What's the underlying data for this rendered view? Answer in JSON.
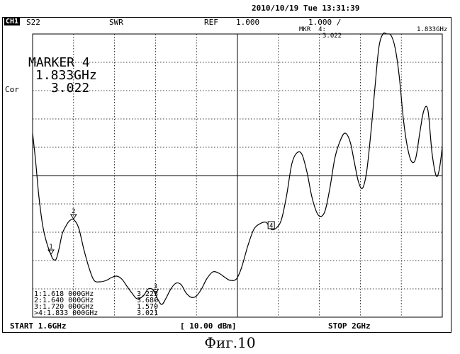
{
  "header": {
    "datetime": "2010/10/19 Tue 13:31:39",
    "channel": "CH1",
    "param": "S22",
    "format": "SWR",
    "ref_label": "REF",
    "ref_value": "1.000",
    "scale": "1.000 /",
    "marker_readout_label": "MKR  4:",
    "marker_readout_value": "3.022",
    "marker_readout_freq": "1.833GHz",
    "cor_label": "Cor"
  },
  "marker_block": {
    "title": "MARKER  4",
    "freq": "1.833GHz",
    "value": "3.022"
  },
  "marker_table": [
    {
      "label": "1:1.618 000GHz",
      "value": "3.223"
    },
    {
      "label": "2:1.640 000GHz",
      "value": "3.686"
    },
    {
      "label": "3:1.720 000GHz",
      "value": "1.570"
    },
    {
      "label": ">4:1.833 000GHz",
      "value": "3.021"
    }
  ],
  "footer": {
    "start": "START 1.6GHz",
    "power": "[ 10.00 dBm]",
    "stop": "STOP 2GHz"
  },
  "caption": "Фиг.10",
  "colors": {
    "trace": "#000000",
    "grid": "#000000",
    "background": "#ffffff"
  },
  "chart_data": {
    "type": "line",
    "xlim": [
      1.6,
      2.0
    ],
    "ylim": [
      0,
      10
    ],
    "ref_value": 1.0,
    "grid": true,
    "x": [
      1.6,
      1.603,
      1.606,
      1.61,
      1.614,
      1.618,
      1.62,
      1.623,
      1.626,
      1.629,
      1.633,
      1.636,
      1.64,
      1.645,
      1.65,
      1.655,
      1.66,
      1.666,
      1.672,
      1.677,
      1.682,
      1.687,
      1.692,
      1.697,
      1.702,
      1.708,
      1.713,
      1.718,
      1.722,
      1.726,
      1.73,
      1.735,
      1.74,
      1.745,
      1.75,
      1.755,
      1.76,
      1.765,
      1.77,
      1.776,
      1.782,
      1.788,
      1.793,
      1.799,
      1.804,
      1.81,
      1.816,
      1.822,
      1.828,
      1.833,
      1.838,
      1.843,
      1.848,
      1.853,
      1.858,
      1.863,
      1.868,
      1.873,
      1.879,
      1.885,
      1.89,
      1.895,
      1.9,
      1.905,
      1.91,
      1.914,
      1.918,
      1.922,
      1.926,
      1.93,
      1.934,
      1.938,
      1.942,
      1.946,
      1.95,
      1.954,
      1.958,
      1.962,
      1.966,
      1.97,
      1.974,
      1.978,
      1.982,
      1.986,
      1.99,
      1.994,
      1.997,
      2.0
    ],
    "y": [
      6.5,
      5.5,
      4.3,
      3.2,
      2.6,
      2.2,
      2.05,
      2.05,
      2.45,
      2.95,
      3.25,
      3.4,
      3.45,
      3.15,
      2.4,
      1.75,
      1.3,
      1.25,
      1.3,
      1.4,
      1.45,
      1.35,
      1.1,
      0.85,
      0.65,
      0.75,
      1.0,
      0.95,
      0.65,
      0.45,
      0.65,
      1.0,
      1.2,
      1.15,
      0.85,
      0.7,
      0.75,
      1.0,
      1.35,
      1.6,
      1.55,
      1.4,
      1.3,
      1.35,
      1.75,
      2.5,
      3.1,
      3.3,
      3.35,
      3.1,
      3.15,
      3.45,
      4.3,
      5.4,
      5.8,
      5.75,
      5.1,
      4.2,
      3.6,
      3.7,
      4.5,
      5.6,
      6.2,
      6.5,
      6.2,
      5.5,
      4.8,
      4.55,
      5.1,
      6.4,
      8.0,
      9.5,
      10.0,
      10.0,
      9.95,
      9.5,
      8.5,
      7.0,
      6.0,
      5.5,
      5.6,
      6.5,
      7.3,
      7.3,
      5.8,
      5.0,
      5.2,
      6.0
    ],
    "markers": [
      {
        "label": "1",
        "x": 1.618,
        "y": 3.223
      },
      {
        "label": "2",
        "x": 1.64,
        "y": 3.686
      },
      {
        "label": "3",
        "x": 1.72,
        "y": 1.57
      },
      {
        "label": "4",
        "x": 1.833,
        "y": 3.021
      }
    ]
  }
}
